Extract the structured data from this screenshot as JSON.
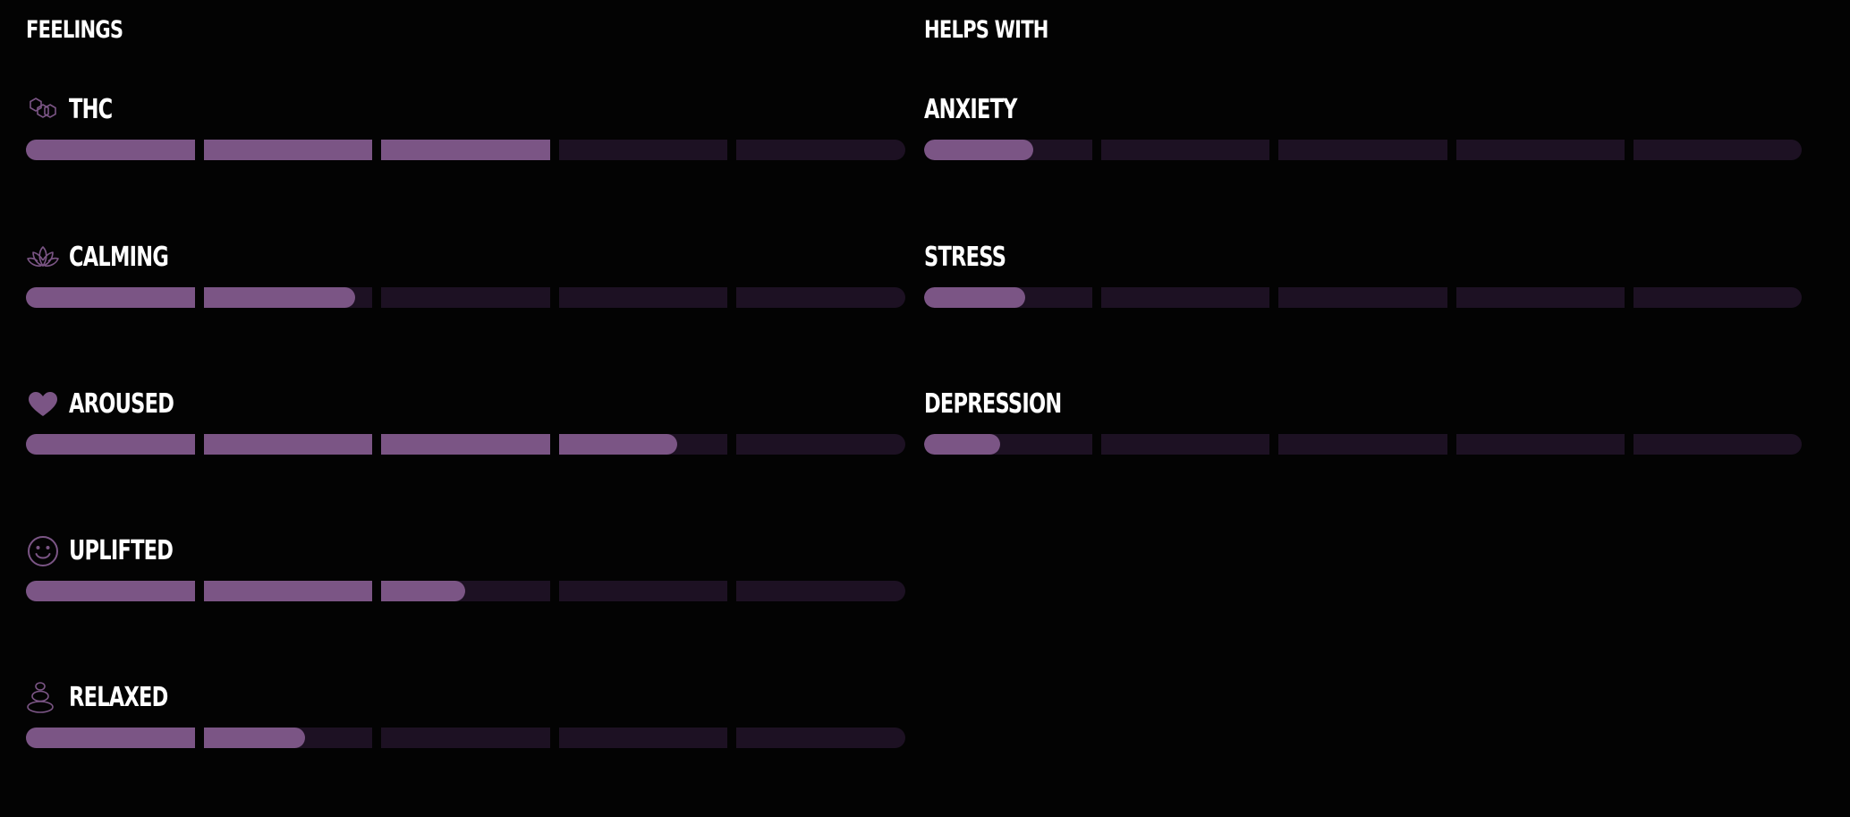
{
  "colors": {
    "background": "#030303",
    "track": "#1d1123",
    "fill": "#7b5585",
    "icon": "#7b5585",
    "text": "#ffffff"
  },
  "feelings": {
    "title": "FEELINGS",
    "items": [
      {
        "label": "THC",
        "icon": "hexagons-icon",
        "level": 0.6
      },
      {
        "label": "CALMING",
        "icon": "lotus-icon",
        "level": 0.38
      },
      {
        "label": "AROUSED",
        "icon": "heart-icon",
        "level": 0.74
      },
      {
        "label": "UPLIFTED",
        "icon": "smiley-icon",
        "level": 0.5
      },
      {
        "label": "RELAXED",
        "icon": "stacked-stones-icon",
        "level": 0.32
      }
    ]
  },
  "helps_with": {
    "title": "HELPS WITH",
    "items": [
      {
        "label": "ANXIETY",
        "level": 0.13
      },
      {
        "label": "STRESS",
        "level": 0.12
      },
      {
        "label": "DEPRESSION",
        "level": 0.09
      }
    ]
  }
}
